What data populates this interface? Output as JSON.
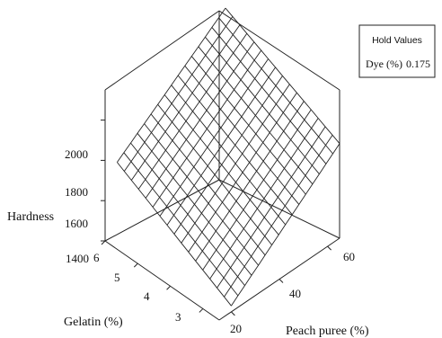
{
  "chart_data": {
    "type": "surface",
    "title": "",
    "xlabel": "Gelatin (%)",
    "ylabel": "Peach puree (%)",
    "zlabel": "Hardness",
    "x_ticks": [
      "3",
      "4",
      "5",
      "6"
    ],
    "y_ticks": [
      "20",
      "40",
      "60"
    ],
    "z_ticks": [
      "1400",
      "1600",
      "1800",
      "2000"
    ],
    "xlim": [
      2.5,
      6
    ],
    "ylim": [
      15,
      65
    ],
    "zlim": [
      1400,
      2150
    ],
    "surface": {
      "description_corners": [
        {
          "gelatin": 6,
          "peach_puree": 20,
          "hardness": 1750
        },
        {
          "gelatin": 2.5,
          "peach_puree": 20,
          "hardness": 1430
        },
        {
          "gelatin": 6,
          "peach_puree": 65,
          "hardness": 2150
        },
        {
          "gelatin": 2.5,
          "peach_puree": 65,
          "hardness": 1870
        }
      ],
      "grid_lines": 17
    },
    "legend": "top-right"
  },
  "hold_values": {
    "title": "Hold Values",
    "label": "Dye (%)",
    "value": "0.175"
  }
}
